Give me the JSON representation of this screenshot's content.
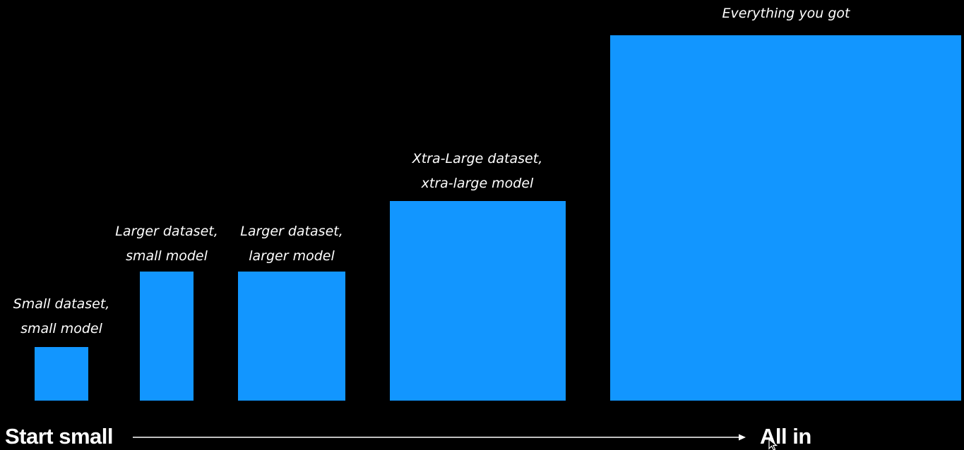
{
  "colors": {
    "background": "#000000",
    "box": "#1296FF",
    "text": "#ffffff"
  },
  "stages": [
    {
      "line1": "Small dataset,",
      "line2": "small model"
    },
    {
      "line1": "Larger dataset,",
      "line2": "small model"
    },
    {
      "line1": "Larger dataset,",
      "line2": "larger model"
    },
    {
      "line1": "Xtra-Large dataset,",
      "line2": "xtra-large model"
    },
    {
      "line1": "Everything you got",
      "line2": ""
    }
  ],
  "axis": {
    "start_label": "Start small",
    "end_label": "All in"
  },
  "icons": {
    "arrow": "right-arrow-icon",
    "cursor": "mouse-pointer-icon"
  }
}
